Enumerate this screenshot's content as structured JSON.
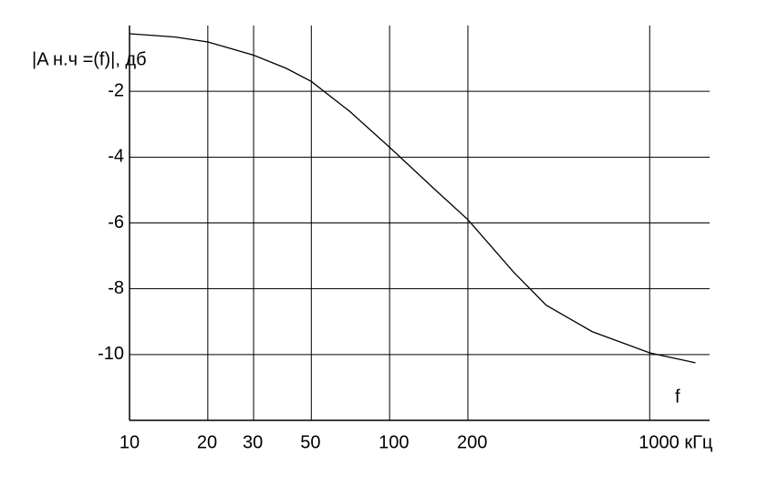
{
  "chart_data": {
    "type": "line",
    "y_label": "|A н.ч =(f)|, дб",
    "x_label": "f",
    "x": [
      10,
      15,
      20,
      30,
      40,
      50,
      70,
      100,
      150,
      200,
      300,
      400,
      600,
      1000,
      1500
    ],
    "series": [
      {
        "color": "#000000",
        "values": [
          -0.25,
          -0.35,
          -0.5,
          -0.9,
          -1.3,
          -1.7,
          -2.6,
          -3.7,
          -5.0,
          -5.9,
          -7.5,
          -8.5,
          -9.3,
          -9.95,
          -10.25
        ]
      }
    ],
    "xscale": "log",
    "xlim": [
      10,
      1700
    ],
    "xticks": [
      10,
      20,
      30,
      50,
      100,
      200,
      {
        "value": 1000,
        "label": "1000 кГц"
      }
    ],
    "ylim": [
      -12,
      0
    ],
    "yticks": [
      -2,
      -4,
      -6,
      -8,
      -10
    ],
    "grid": true
  }
}
